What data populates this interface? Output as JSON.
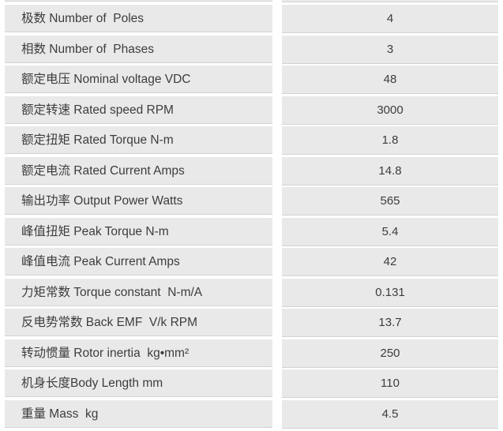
{
  "table": {
    "colors": {
      "page_background": "#ffffff",
      "row_background": "#e9e9e9",
      "row_divider": "#d2d2d2",
      "text": "#3d3d3d"
    },
    "rows": [
      {
        "label": "极数 Number of  Poles",
        "value": "4"
      },
      {
        "label": "相数 Number of  Phases",
        "value": "3"
      },
      {
        "label": "额定电压 Nominal voltage VDC",
        "value": "48"
      },
      {
        "label": "额定转速 Rated speed RPM",
        "value": "3000"
      },
      {
        "label": "额定扭矩 Rated Torque N-m",
        "value": "1.8"
      },
      {
        "label": "额定电流 Rated Current Amps",
        "value": "14.8"
      },
      {
        "label": "输出功率 Output Power Watts",
        "value": "565"
      },
      {
        "label": "峰值扭矩 Peak Torque N-m",
        "value": "5.4"
      },
      {
        "label": "峰值电流 Peak Current Amps",
        "value": "42"
      },
      {
        "label": "力矩常数 Torque constant  N-m/A",
        "value": "0.131"
      },
      {
        "label": "反电势常数 Back EMF  V/k RPM",
        "value": "13.7"
      },
      {
        "label": "转动惯量 Rotor inertia  kg•mm²",
        "value": "250"
      },
      {
        "label": "机身长度Body Length mm",
        "value": "110"
      },
      {
        "label": "重量 Mass  kg",
        "value": "4.5"
      }
    ]
  }
}
